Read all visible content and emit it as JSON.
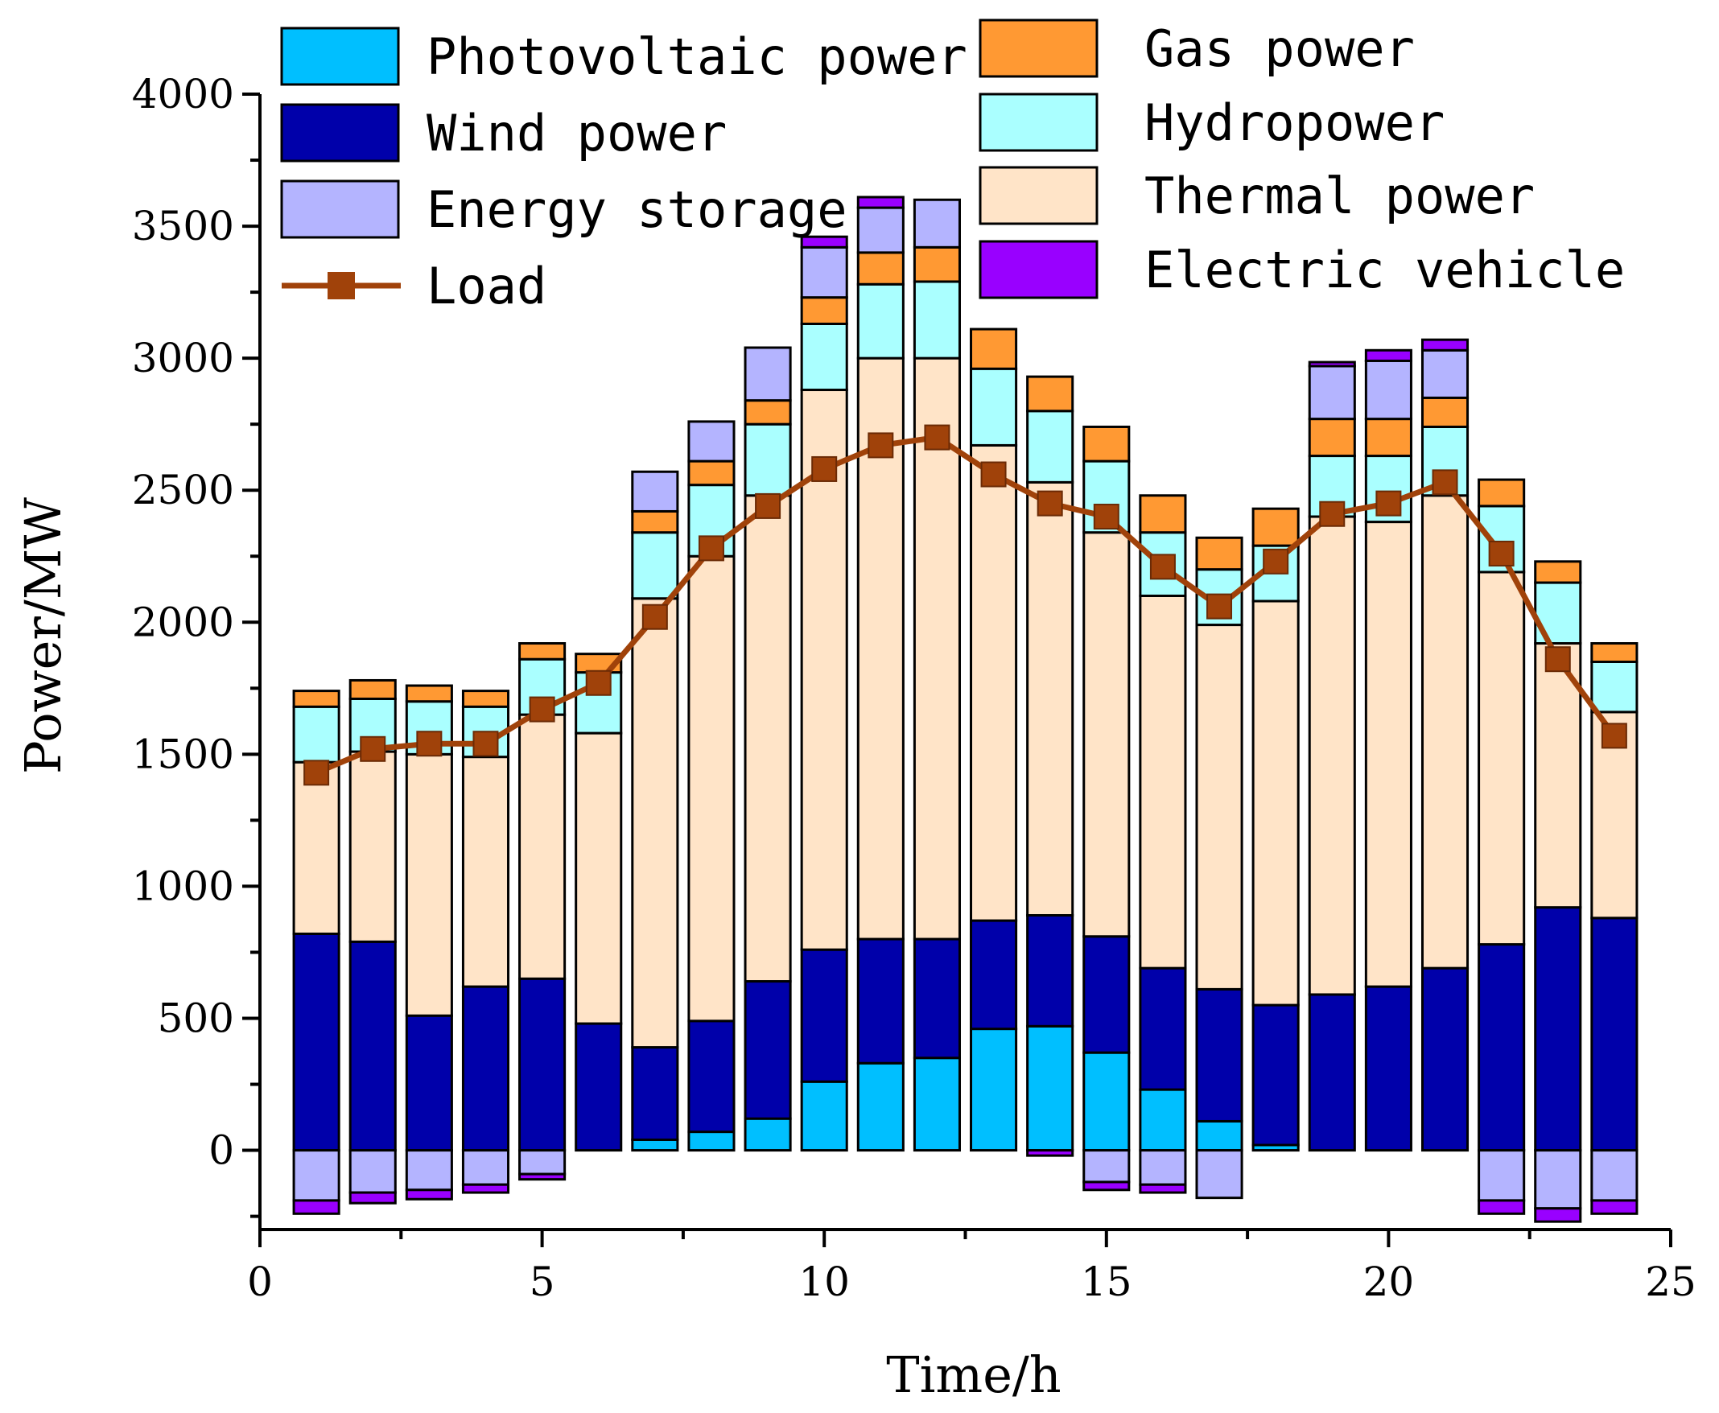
{
  "chart_data": {
    "type": "bar",
    "stacked": true,
    "xlabel": "Time/h",
    "ylabel": "Power/MW",
    "xlim": [
      0,
      25
    ],
    "ylim": [
      -300,
      4000
    ],
    "xticks": [
      0,
      5,
      10,
      15,
      20,
      25
    ],
    "yticks": [
      0,
      500,
      1000,
      1500,
      2000,
      2500,
      3000,
      3500,
      4000
    ],
    "x": [
      1,
      2,
      3,
      4,
      5,
      6,
      7,
      8,
      9,
      10,
      11,
      12,
      13,
      14,
      15,
      16,
      17,
      18,
      19,
      20,
      21,
      22,
      23,
      24
    ],
    "series": [
      {
        "name": "Photovoltaic power",
        "color": "#00bfff",
        "values": [
          0,
          0,
          0,
          0,
          0,
          0,
          40,
          70,
          120,
          260,
          330,
          350,
          460,
          470,
          370,
          230,
          110,
          20,
          0,
          0,
          0,
          0,
          0,
          0
        ]
      },
      {
        "name": "Wind power",
        "color": "#0000aa",
        "values": [
          820,
          790,
          510,
          620,
          650,
          480,
          350,
          420,
          520,
          500,
          470,
          450,
          410,
          420,
          440,
          460,
          500,
          530,
          590,
          620,
          690,
          780,
          920,
          880
        ]
      },
      {
        "name": "Thermal power",
        "color": "#ffe4c8",
        "values": [
          650,
          720,
          990,
          870,
          1000,
          1100,
          1700,
          1760,
          1840,
          2120,
          2200,
          2200,
          1800,
          1640,
          1530,
          1410,
          1380,
          1530,
          1810,
          1760,
          1790,
          1410,
          1000,
          780
        ]
      },
      {
        "name": "Hydropower",
        "color": "#aaffff",
        "values": [
          210,
          200,
          200,
          190,
          210,
          230,
          250,
          270,
          270,
          250,
          280,
          290,
          290,
          270,
          270,
          240,
          210,
          210,
          230,
          250,
          260,
          250,
          230,
          190
        ]
      },
      {
        "name": "Gas power",
        "color": "#ff9933",
        "values": [
          60,
          70,
          60,
          60,
          60,
          70,
          80,
          90,
          90,
          100,
          120,
          130,
          150,
          130,
          130,
          140,
          120,
          140,
          140,
          140,
          110,
          100,
          80,
          70
        ]
      },
      {
        "name": "Energy storage",
        "color": "#b4b4ff",
        "values": [
          -190,
          -160,
          -150,
          -130,
          -90,
          0,
          150,
          150,
          200,
          190,
          170,
          180,
          0,
          0,
          -120,
          -130,
          -180,
          0,
          200,
          220,
          180,
          -190,
          -220,
          -190
        ]
      },
      {
        "name": "Electric vehicle",
        "color": "#9900ff",
        "values": [
          -50,
          -40,
          -35,
          -30,
          -20,
          0,
          0,
          0,
          0,
          40,
          40,
          0,
          0,
          -20,
          -30,
          -30,
          0,
          0,
          15,
          40,
          40,
          -50,
          -50,
          -50
        ]
      }
    ],
    "load": {
      "name": "Load",
      "color": "#a0420a",
      "values": [
        1430,
        1520,
        1540,
        1540,
        1670,
        1770,
        2020,
        2280,
        2440,
        2580,
        2670,
        2700,
        2560,
        2450,
        2400,
        2210,
        2060,
        2230,
        2410,
        2450,
        2530,
        2260,
        1860,
        1570
      ]
    },
    "legend": [
      "Photovoltaic power",
      "Wind power",
      "Energy storage",
      "Load",
      "Gas power",
      "Hydropower",
      "Thermal power",
      "Electric vehicle"
    ]
  }
}
